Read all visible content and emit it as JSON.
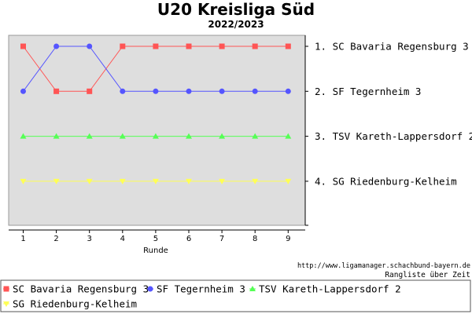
{
  "chart_data": {
    "type": "line",
    "title": "U20 Kreisliga Süd",
    "subtitle": "2022/2023",
    "xlabel": "Runde",
    "ylabel": "",
    "x": [
      1,
      2,
      3,
      4,
      5,
      6,
      7,
      8,
      9
    ],
    "ylim": [
      1,
      4
    ],
    "y_inverted": true,
    "grid": false,
    "legend_position": "bottom",
    "rank_labels": [
      "1. SC Bavaria Regensburg 3",
      "2. SF Tegernheim 3",
      "3. TSV Kareth-Lappersdorf 2",
      "4. SG Riedenburg-Kelheim"
    ],
    "series": [
      {
        "name": "SC Bavaria Regensburg 3",
        "color": "#ff5555",
        "marker": "square",
        "values": [
          1,
          2,
          2,
          1,
          1,
          1,
          1,
          1,
          1
        ]
      },
      {
        "name": "SF Tegernheim 3",
        "color": "#5555ff",
        "marker": "circle",
        "values": [
          2,
          1,
          1,
          2,
          2,
          2,
          2,
          2,
          2
        ]
      },
      {
        "name": "TSV Kareth-Lappersdorf 2",
        "color": "#55ff55",
        "marker": "triangle",
        "values": [
          3,
          3,
          3,
          3,
          3,
          3,
          3,
          3,
          3
        ]
      },
      {
        "name": "SG Riedenburg-Kelheim",
        "color": "#ffff55",
        "marker": "triangle-down",
        "values": [
          4,
          4,
          4,
          4,
          4,
          4,
          4,
          4,
          4
        ]
      }
    ],
    "source_url": "http://www.ligamanager.schachbund-bayern.de",
    "source_note": "Rangliste über Zeit"
  }
}
